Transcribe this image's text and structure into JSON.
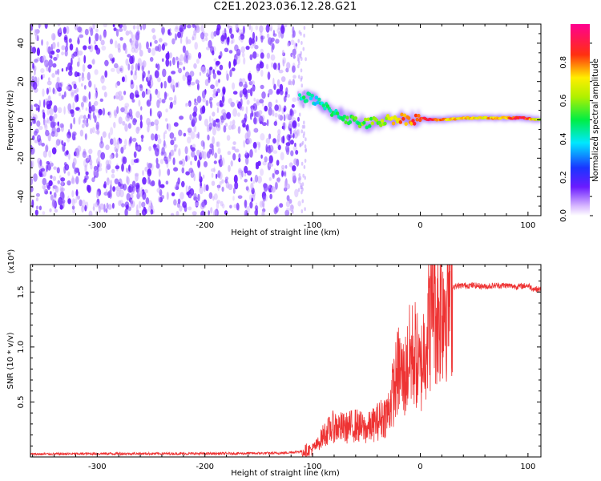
{
  "title": "C2E1.2023.036.12.28.G21",
  "colors": {
    "snr_line": "#ee3333",
    "spectrogram_base": "#6a1bff",
    "frame": "#000000"
  },
  "chart_data": [
    {
      "type": "heatmap",
      "name": "spectrogram",
      "xlabel": "Height of straight line (km)",
      "ylabel": "Frequency (Hz)",
      "xlim": [
        -362,
        112
      ],
      "ylim": [
        -50,
        50
      ],
      "x_ticks": [
        -300,
        -200,
        -100,
        0,
        100
      ],
      "x_tick_labels": [
        "-300",
        "-200",
        "-100",
        "0",
        "100"
      ],
      "y_ticks": [
        -40,
        -20,
        0,
        20,
        40
      ],
      "y_tick_labels": [
        "-40",
        "-20",
        "0",
        "20",
        "40"
      ],
      "colorbar": {
        "label": "Normalized spectral amplitude",
        "range": [
          0.0,
          1.0
        ],
        "ticks": [
          0.0,
          0.2,
          0.4,
          0.6,
          0.8
        ],
        "tick_labels": [
          "0.0",
          "0.2",
          "0.4",
          "0.6",
          "0.8"
        ],
        "colormap": "white-purple-blue-cyan-green-yellow-red-magenta"
      },
      "noise_region": {
        "x_from": -362,
        "x_to": -112,
        "y_from": -50,
        "y_to": 50,
        "amplitude": 0.15
      },
      "signal_track": [
        {
          "x": -112,
          "y": 12,
          "amp": 0.45
        },
        {
          "x": -100,
          "y": 11,
          "amp": 0.42
        },
        {
          "x": -90,
          "y": 7,
          "amp": 0.42
        },
        {
          "x": -80,
          "y": 4,
          "amp": 0.45
        },
        {
          "x": -70,
          "y": 1,
          "amp": 0.5
        },
        {
          "x": -60,
          "y": -1,
          "amp": 0.52
        },
        {
          "x": -50,
          "y": -2,
          "amp": 0.55
        },
        {
          "x": -40,
          "y": -1,
          "amp": 0.6
        },
        {
          "x": -30,
          "y": 0,
          "amp": 0.65
        },
        {
          "x": -20,
          "y": 1,
          "amp": 0.75
        },
        {
          "x": -10,
          "y": 0,
          "amp": 0.8
        },
        {
          "x": 0,
          "y": 1,
          "amp": 0.85
        },
        {
          "x": 10,
          "y": 0,
          "amp": 0.9
        },
        {
          "x": 20,
          "y": 0,
          "amp": 0.75
        },
        {
          "x": 40,
          "y": 1,
          "amp": 0.7
        },
        {
          "x": 60,
          "y": 1,
          "amp": 0.72
        },
        {
          "x": 80,
          "y": 1,
          "amp": 0.78
        },
        {
          "x": 95,
          "y": 1,
          "amp": 0.95
        },
        {
          "x": 112,
          "y": 0,
          "amp": 0.55
        }
      ]
    },
    {
      "type": "line",
      "name": "snr",
      "xlabel": "Height of straight line (km)",
      "ylabel": "SNR (10 * v/v)",
      "y_scale_label": "(x10⁴)",
      "xlim": [
        -362,
        112
      ],
      "ylim": [
        0,
        17500
      ],
      "x_ticks": [
        -300,
        -200,
        -100,
        0,
        100
      ],
      "x_tick_labels": [
        "-300",
        "-200",
        "-100",
        "0",
        "100"
      ],
      "y_ticks": [
        5000,
        10000,
        15000
      ],
      "y_tick_labels": [
        "0.5",
        "1.0",
        "1.5"
      ],
      "series": [
        {
          "x": [
            -362,
            -300,
            -200,
            -130,
            -110,
            -100,
            -95,
            -90,
            -80,
            -70,
            -60,
            -50,
            -40,
            -30,
            -25,
            -20,
            -15,
            -10,
            -5,
            0,
            5,
            10,
            12,
            15,
            20,
            25,
            30,
            40,
            50,
            60,
            70,
            80,
            90,
            100,
            105,
            112
          ],
          "values": [
            250,
            300,
            300,
            350,
            500,
            700,
            1200,
            2000,
            2800,
            2600,
            2900,
            2500,
            3200,
            4000,
            6000,
            8000,
            7000,
            9000,
            9500,
            7500,
            11000,
            13000,
            17000,
            13000,
            14000,
            15000,
            15500,
            15600,
            15600,
            15500,
            15600,
            15600,
            15500,
            15600,
            15300,
            15200
          ]
        }
      ]
    }
  ]
}
